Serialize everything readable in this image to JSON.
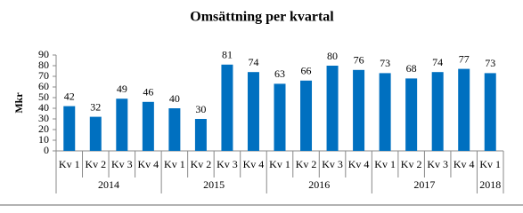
{
  "chart_data": {
    "type": "bar",
    "title": "Omsättning per kvartal",
    "ylabel": "Mkr",
    "categories": [
      "Kv 1",
      "Kv 2",
      "Kv 3",
      "Kv 4",
      "Kv 1",
      "Kv 2",
      "Kv 3",
      "Kv 4",
      "Kv 1",
      "Kv 2",
      "Kv 3",
      "Kv 4",
      "Kv 1",
      "Kv 2",
      "Kv 3",
      "Kv 4",
      "Kv 1"
    ],
    "category_groups": [
      "2014",
      null,
      null,
      null,
      "2015",
      null,
      null,
      null,
      "2016",
      null,
      null,
      null,
      "2017",
      null,
      null,
      null,
      "2018"
    ],
    "values": [
      42,
      32,
      49,
      46,
      40,
      30,
      81,
      74,
      63,
      66,
      80,
      76,
      73,
      68,
      74,
      77,
      73
    ],
    "color": "#0070c0",
    "ylim": [
      0,
      90
    ],
    "yticks": [
      0,
      10,
      20,
      30,
      40,
      50,
      60,
      70,
      80,
      90
    ],
    "grid": false
  }
}
